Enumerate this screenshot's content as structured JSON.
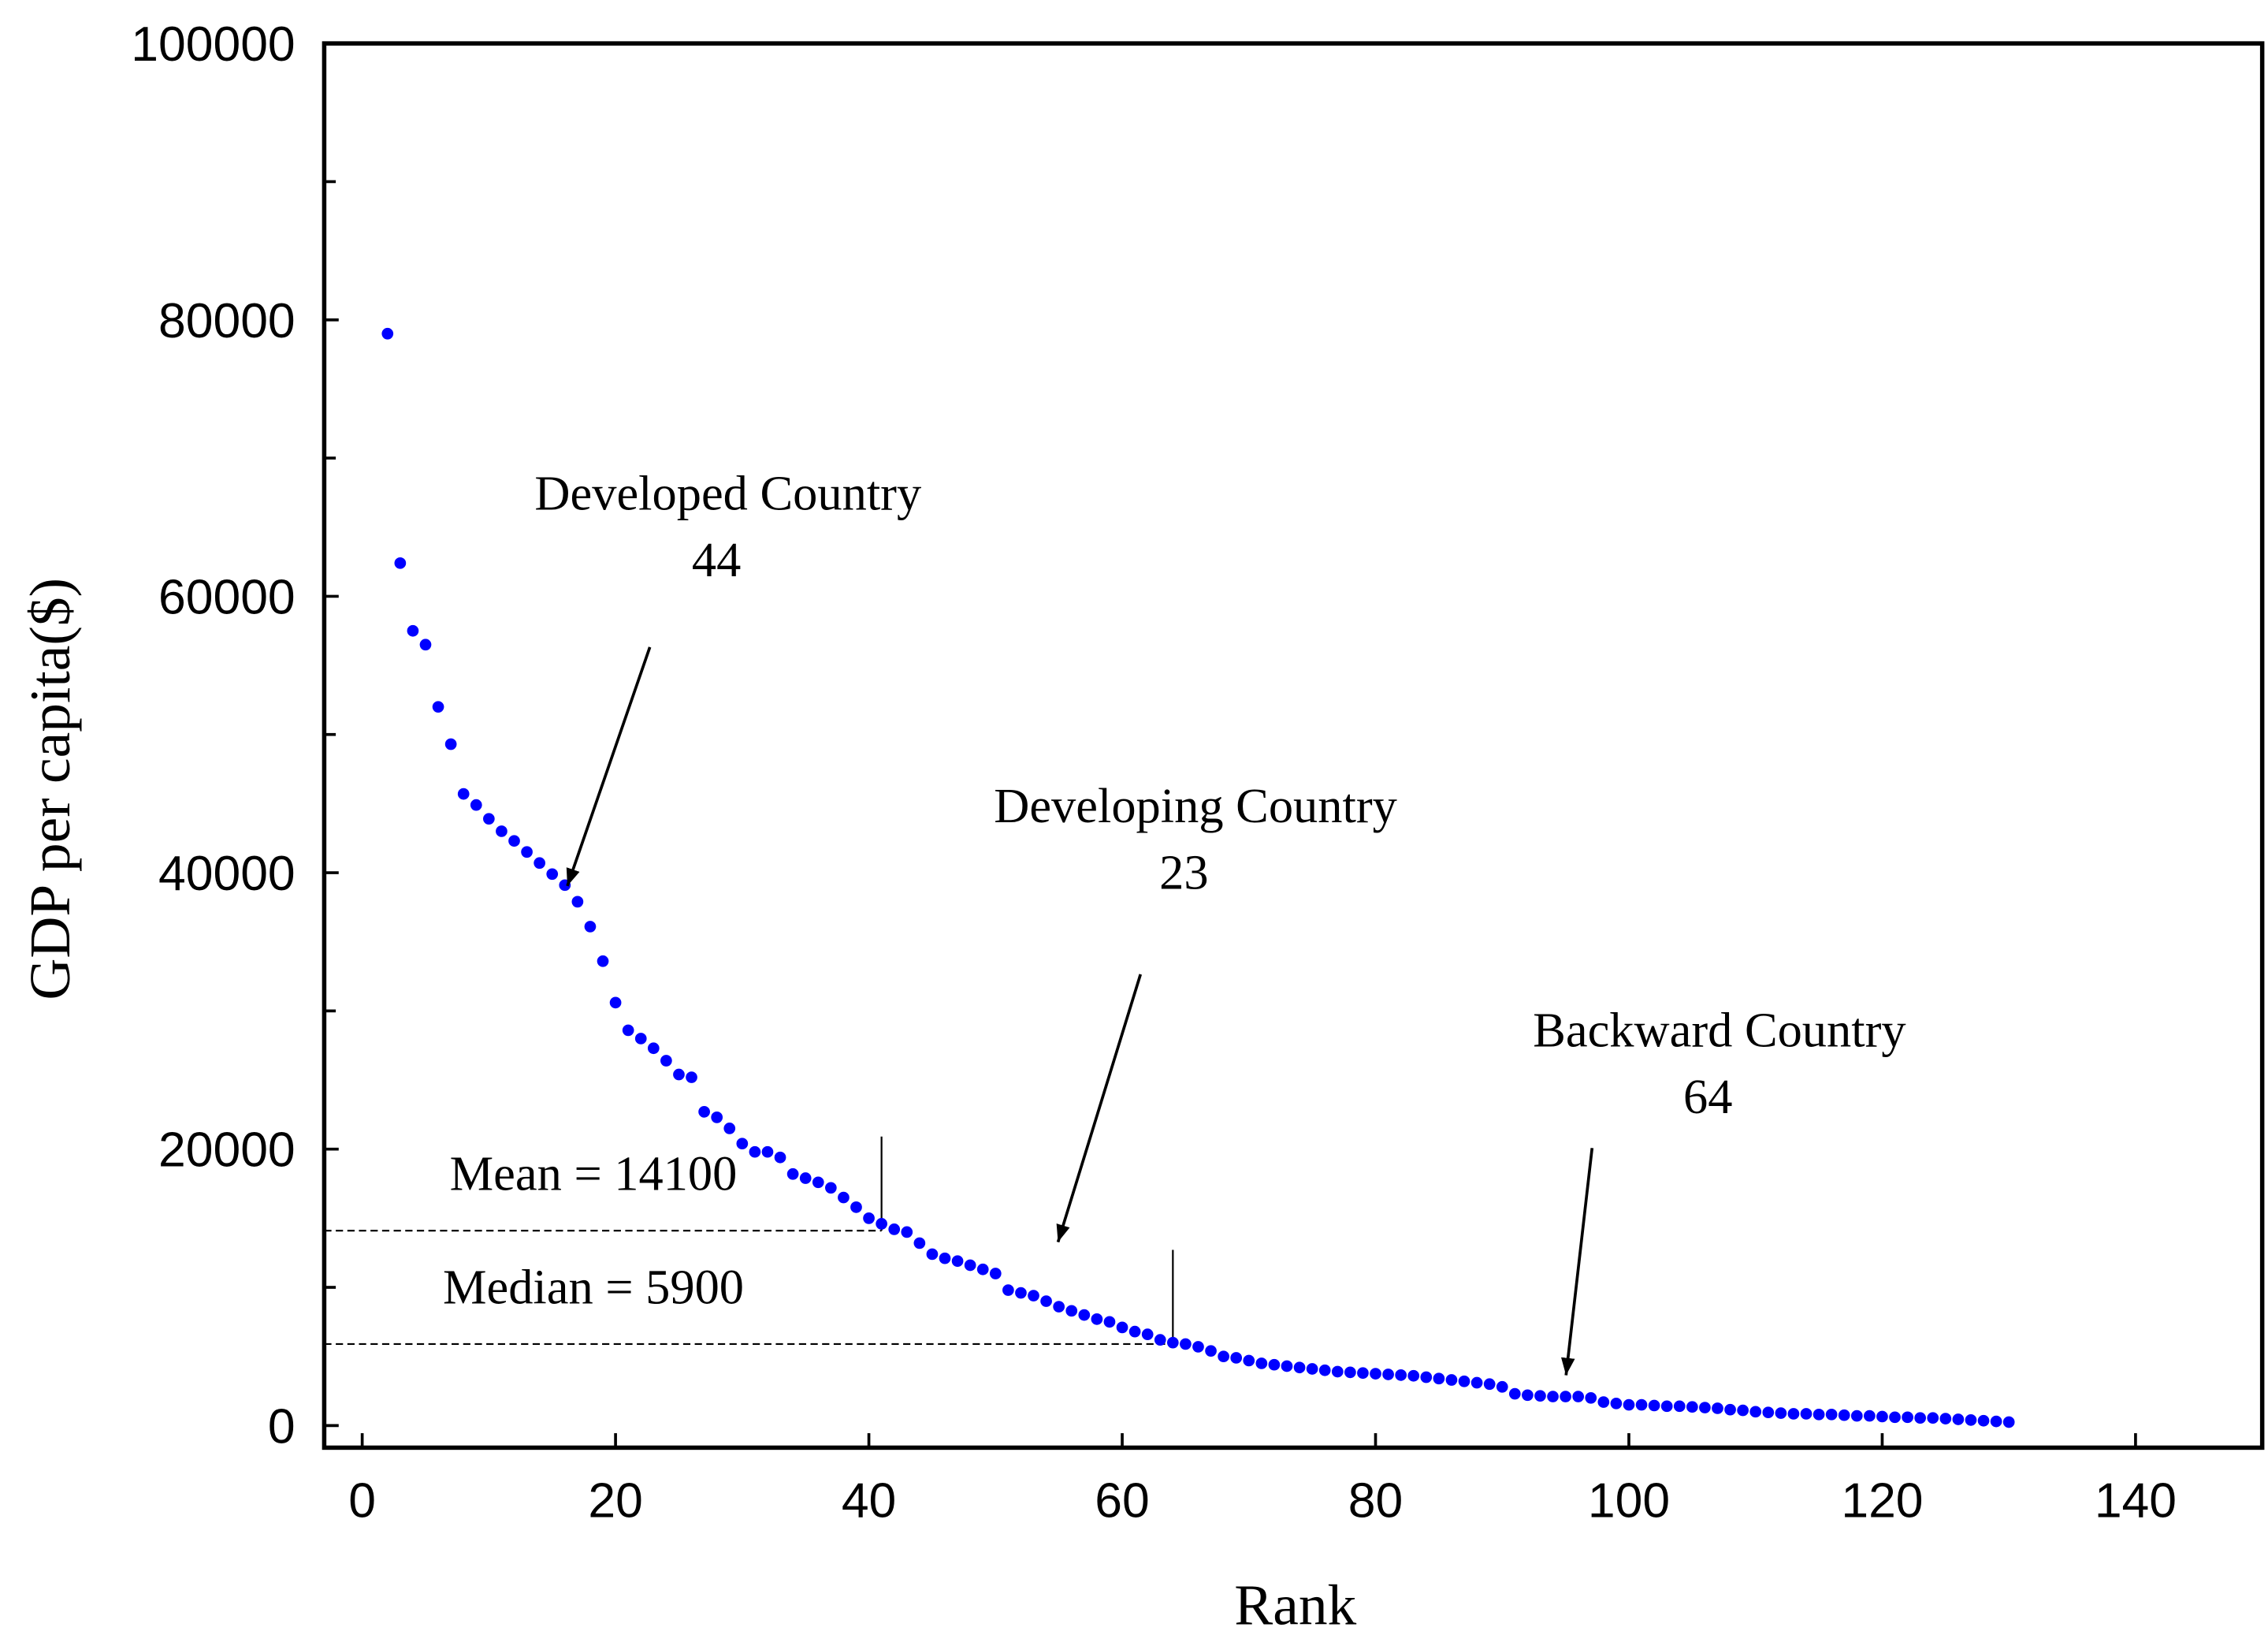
{
  "chart_data": {
    "type": "scatter",
    "xlabel": "Rank",
    "ylabel": "GDP per capita($)",
    "x": [
      2,
      3,
      4,
      5,
      6,
      7,
      8,
      9,
      10,
      11,
      12,
      13,
      14,
      15,
      16,
      17,
      18,
      19,
      20,
      21,
      22,
      23,
      24,
      25,
      26,
      27,
      28,
      29,
      30,
      31,
      32,
      33,
      34,
      35,
      36,
      37,
      38,
      39,
      40,
      41,
      42,
      43,
      44,
      45,
      46,
      47,
      48,
      49,
      50,
      51,
      52,
      53,
      54,
      55,
      56,
      57,
      58,
      59,
      60,
      61,
      62,
      63,
      64,
      65,
      66,
      67,
      68,
      69,
      70,
      71,
      72,
      73,
      74,
      75,
      76,
      77,
      78,
      79,
      80,
      81,
      82,
      83,
      84,
      85,
      86,
      87,
      88,
      89,
      90,
      91,
      92,
      93,
      94,
      95,
      96,
      97,
      98,
      99,
      100,
      101,
      102,
      103,
      104,
      105,
      106,
      107,
      108,
      109,
      110,
      111,
      112,
      113,
      114,
      115,
      116,
      117,
      118,
      119,
      120,
      121,
      122,
      123,
      124,
      125,
      126,
      127,
      128,
      129,
      130
    ],
    "series": [
      {
        "color": "#0000ff",
        "values": [
          79000,
          62400,
          57500,
          56500,
          52000,
          49300,
          45700,
          44900,
          43900,
          43000,
          42300,
          41500,
          40700,
          39900,
          39100,
          37900,
          36100,
          33600,
          30600,
          28600,
          28000,
          27300,
          26400,
          25400,
          25200,
          22700,
          22300,
          21500,
          20400,
          19800,
          19800,
          19400,
          18200,
          17900,
          17600,
          17200,
          16500,
          15800,
          15000,
          14600,
          14200,
          14000,
          13200,
          12400,
          12100,
          11900,
          11600,
          11300,
          11000,
          9800,
          9600,
          9400,
          9000,
          8600,
          8300,
          8000,
          7700,
          7500,
          7100,
          6800,
          6600,
          6200,
          6000,
          5900,
          5700,
          5400,
          5000,
          4900,
          4700,
          4500,
          4400,
          4300,
          4200,
          4100,
          4000,
          3900,
          3850,
          3800,
          3750,
          3700,
          3650,
          3600,
          3500,
          3400,
          3300,
          3200,
          3100,
          3000,
          2800,
          2300,
          2200,
          2150,
          2100,
          2100,
          2100,
          2000,
          1700,
          1600,
          1500,
          1500,
          1450,
          1400,
          1400,
          1350,
          1300,
          1250,
          1150,
          1100,
          1000,
          950,
          900,
          850,
          850,
          800,
          800,
          750,
          700,
          700,
          650,
          600,
          600,
          550,
          550,
          500,
          450,
          400,
          350,
          300,
          250
        ]
      }
    ],
    "xlim": [
      -3,
      150
    ],
    "xticks": [
      0,
      20,
      40,
      60,
      80,
      100,
      120,
      140
    ],
    "ylim": [
      -1600,
      100000
    ],
    "yticks": [
      0,
      20000,
      40000,
      60000,
      80000,
      100000
    ],
    "yminorticks": [
      10000,
      30000,
      50000,
      70000,
      90000
    ],
    "reference_lines": [
      {
        "label": "Mean = 14100",
        "value": 14100,
        "x_end": 41
      },
      {
        "label": "Median = 5900",
        "value": 5900,
        "x_end": 64
      }
    ],
    "annotations": [
      {
        "text": "Developed Country",
        "count": 44
      },
      {
        "text": "Developing Country",
        "count": 23
      },
      {
        "text": "Backward Country",
        "count": 64
      }
    ]
  }
}
